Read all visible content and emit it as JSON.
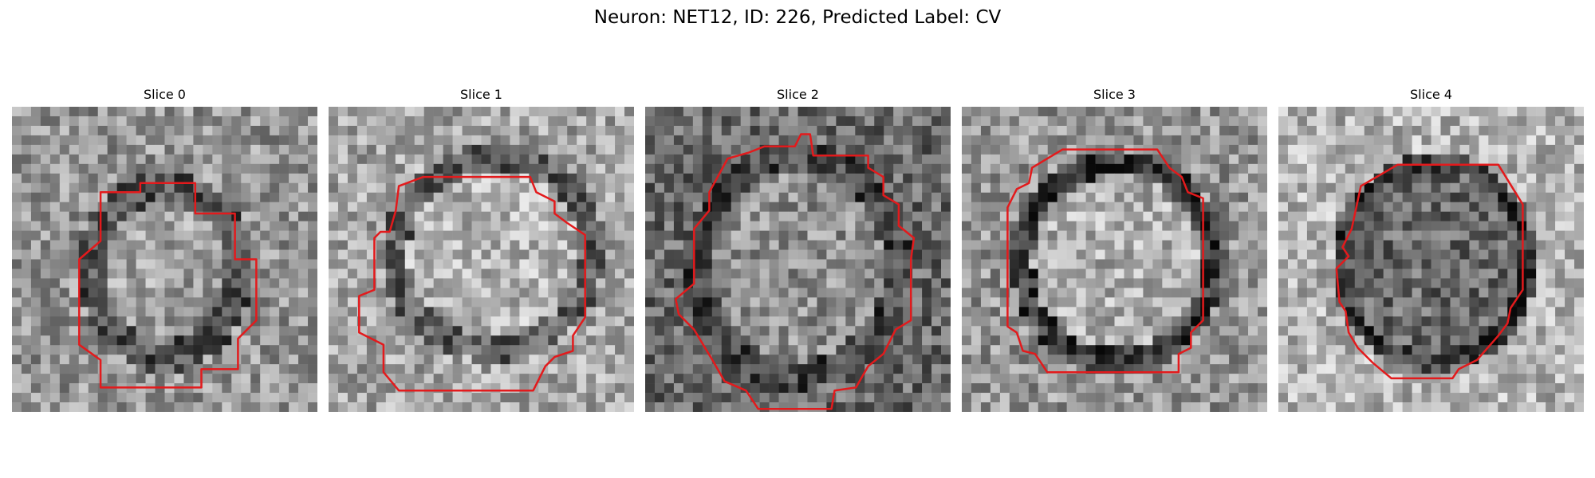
{
  "figure": {
    "title": "Neuron: NET12, ID: 226, Predicted Label: CV"
  },
  "panels": [
    {
      "title": "Slice 0",
      "outline_color": "#e31a1c"
    },
    {
      "title": "Slice 1",
      "outline_color": "#e31a1c"
    },
    {
      "title": "Slice 2",
      "outline_color": "#e31a1c"
    },
    {
      "title": "Slice 3",
      "outline_color": "#e31a1c"
    },
    {
      "title": "Slice 4",
      "outline_color": "#e31a1c"
    }
  ]
}
